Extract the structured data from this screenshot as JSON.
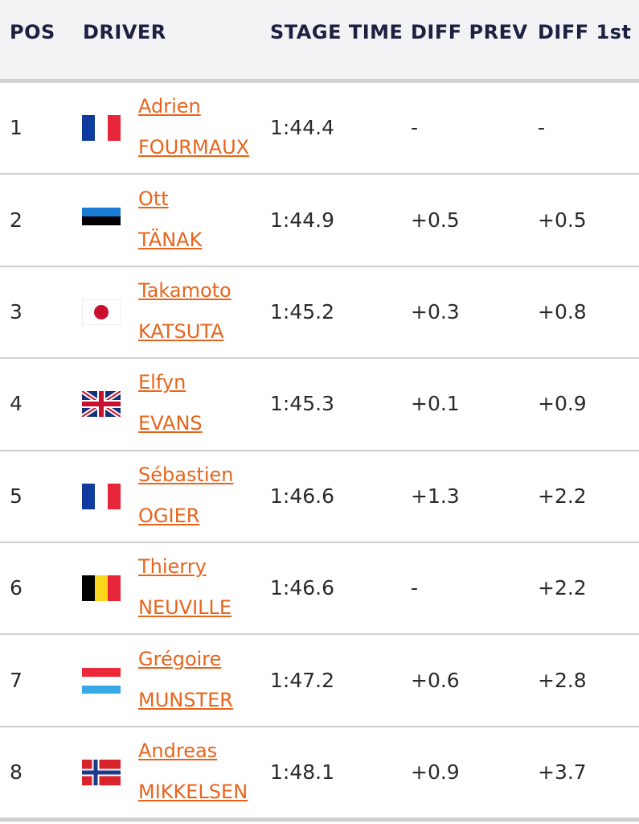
{
  "table": {
    "header": [
      "POS",
      "DRIVER",
      "STAGE TIME",
      "DIFF PREV",
      "DIFF 1st"
    ],
    "rows": [
      {
        "pos": "1",
        "first": "Adrien",
        "last": "FOURMAUX",
        "time": "1:44.4",
        "diff_prev": "-",
        "diff_first": "-"
      },
      {
        "pos": "2",
        "first": "Ott",
        "last": "TÄNAK",
        "time": "1:44.9",
        "diff_prev": "+0.5",
        "diff_first": "+0.5"
      },
      {
        "pos": "3",
        "first": "Takamoto",
        "last": "KATSUTA",
        "time": "1:45.2",
        "diff_prev": "+0.3",
        "diff_first": "+0.8"
      },
      {
        "pos": "4",
        "first": "Elfyn",
        "last": "EVANS",
        "time": "1:45.3",
        "diff_prev": "+0.1",
        "diff_first": "+0.9"
      },
      {
        "pos": "5",
        "first": "Sébastien",
        "last": "OGIER",
        "time": "1:46.6",
        "diff_prev": "+1.3",
        "diff_first": "+2.2"
      },
      {
        "pos": "6",
        "first": "Thierry",
        "last": "NEUVILLE",
        "time": "1:46.6",
        "diff_prev": "-",
        "diff_first": "+2.2"
      },
      {
        "pos": "7",
        "first": "Grégoire",
        "last": "MUNSTER",
        "time": "1:47.2",
        "diff_prev": "+0.6",
        "diff_first": "+2.8"
      },
      {
        "pos": "8",
        "first": "Andreas",
        "last": "MIKKELSEN",
        "time": "1:48.1",
        "diff_prev": "+0.9",
        "diff_first": "+3.7"
      }
    ]
  }
}
